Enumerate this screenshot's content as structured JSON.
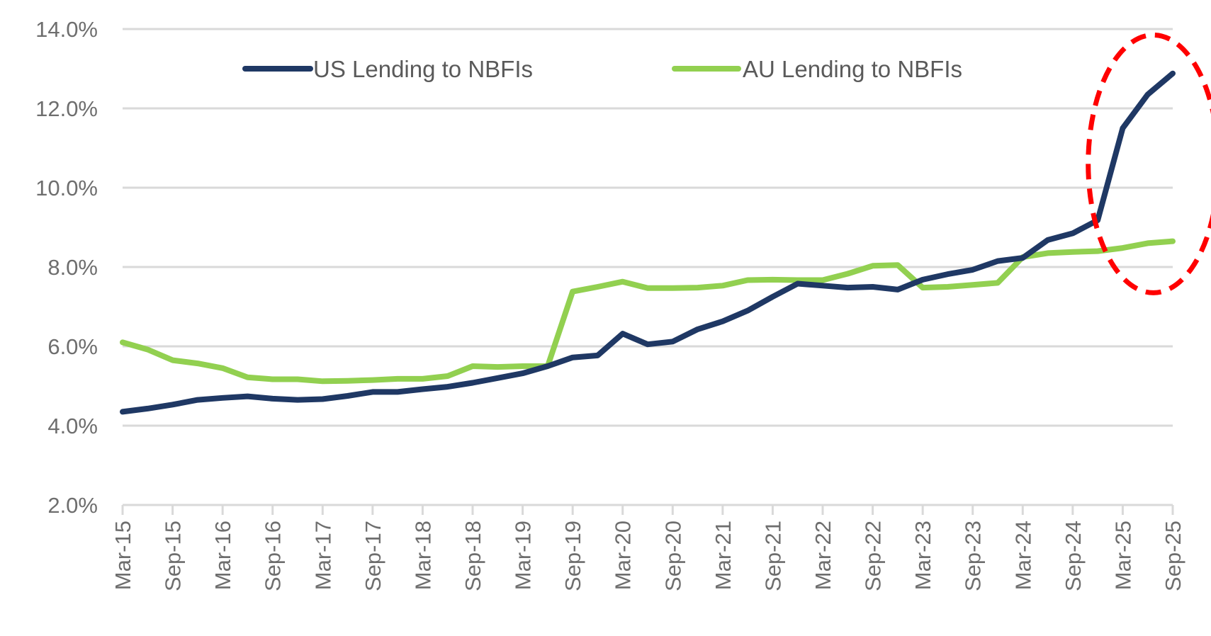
{
  "chart_data": {
    "type": "line",
    "title": "",
    "xlabel": "",
    "ylabel": "",
    "ylim": [
      2.0,
      14.0
    ],
    "y_ticks": [
      "2.0%",
      "4.0%",
      "6.0%",
      "8.0%",
      "10.0%",
      "12.0%",
      "14.0%"
    ],
    "y_tick_values": [
      2,
      4,
      6,
      8,
      10,
      12,
      14
    ],
    "x_tick_labels": [
      "Mar-15",
      "Sep-15",
      "Mar-16",
      "Sep-16",
      "Mar-17",
      "Sep-17",
      "Mar-18",
      "Sep-18",
      "Mar-19",
      "Sep-19",
      "Mar-20",
      "Sep-20",
      "Mar-21",
      "Sep-21",
      "Mar-22",
      "Sep-22",
      "Mar-23",
      "Sep-23",
      "Mar-24",
      "Sep-24",
      "Mar-25",
      "Sep-25"
    ],
    "grid": true,
    "legend_position": "top",
    "series": [
      {
        "name": "US Lending to NBFIs",
        "color": "#1f3864",
        "values": [
          4.35,
          4.43,
          4.53,
          4.65,
          4.7,
          4.74,
          4.68,
          4.65,
          4.67,
          4.75,
          4.85,
          4.85,
          4.92,
          4.98,
          5.08,
          5.2,
          5.32,
          5.5,
          5.72,
          5.77,
          6.32,
          6.05,
          6.12,
          6.43,
          6.63,
          6.9,
          7.25,
          7.58,
          7.53,
          7.48,
          7.5,
          7.43,
          7.68,
          7.82,
          7.93,
          8.15,
          8.23,
          8.68,
          8.85,
          9.18,
          11.5,
          12.35,
          12.88
        ]
      },
      {
        "name": "AU Lending to NBFIs",
        "color": "#92d050",
        "values": [
          6.1,
          5.92,
          5.65,
          5.57,
          5.45,
          5.22,
          5.17,
          5.17,
          5.12,
          5.13,
          5.15,
          5.18,
          5.18,
          5.25,
          5.5,
          5.48,
          5.5,
          5.5,
          7.38,
          7.5,
          7.63,
          7.47,
          7.47,
          7.48,
          7.53,
          7.67,
          7.68,
          7.67,
          7.67,
          7.83,
          8.03,
          8.05,
          7.48,
          7.5,
          7.55,
          7.6,
          8.25,
          8.35,
          8.38,
          8.4,
          8.48,
          8.6,
          8.65
        ]
      }
    ],
    "annotation": {
      "type": "dashed-ellipse",
      "color": "#ff0000",
      "label": ""
    }
  }
}
